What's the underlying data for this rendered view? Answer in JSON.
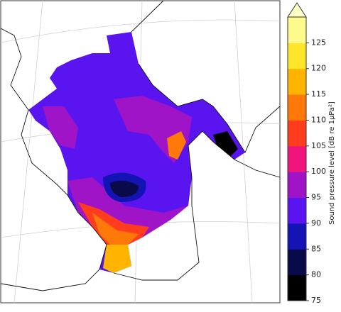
{
  "colorbar": {
    "label": "Sound pressure level [dB re 1μPa²]",
    "lim": [
      75,
      130
    ],
    "extend": "max",
    "ticks": [
      75,
      80,
      85,
      90,
      95,
      100,
      105,
      110,
      115,
      120,
      125
    ],
    "colors": [
      "#000000",
      "#0a0a4a",
      "#1414b4",
      "#5a14f0",
      "#a014c8",
      "#f0147d",
      "#ff3c1e",
      "#ff780a",
      "#ffb400",
      "#ffe628",
      "#fffa8c"
    ],
    "extend_color": "#ffffc8"
  }
}
